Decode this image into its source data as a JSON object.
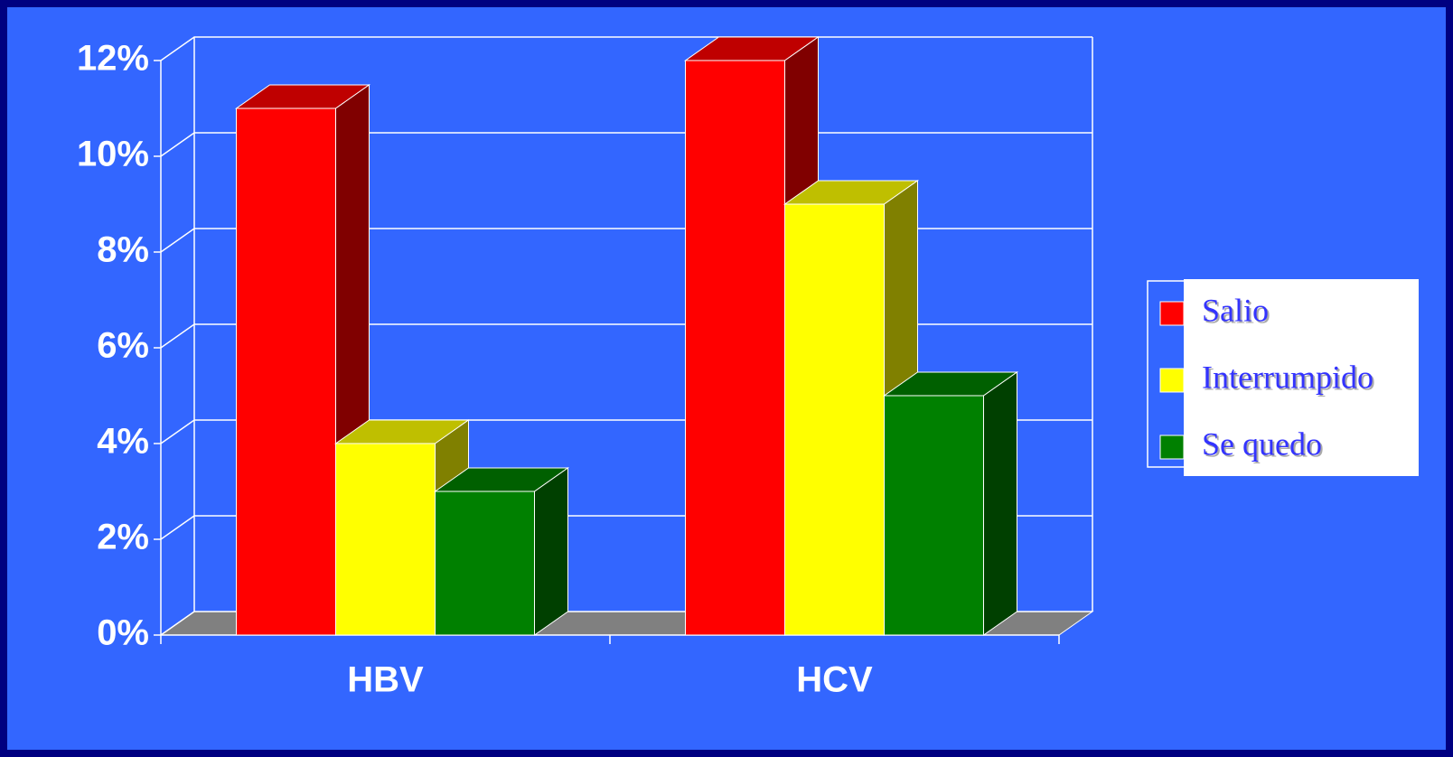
{
  "chart_data": {
    "type": "bar3d",
    "categories": [
      "HBV",
      "HCV"
    ],
    "series": [
      {
        "name": "Salio",
        "color": "#ff0000",
        "values": [
          11,
          12
        ]
      },
      {
        "name": "Interrumpido",
        "color": "#ffff00",
        "values": [
          4,
          9
        ]
      },
      {
        "name": "Se quedo",
        "color": "#008000",
        "values": [
          3,
          5
        ]
      }
    ],
    "ylim": [
      0,
      12
    ],
    "yticks": [
      {
        "value": 0,
        "label": "0%"
      },
      {
        "value": 2,
        "label": "2%"
      },
      {
        "value": 4,
        "label": "4%"
      },
      {
        "value": 6,
        "label": "6%"
      },
      {
        "value": 8,
        "label": "8%"
      },
      {
        "value": 10,
        "label": "10%"
      },
      {
        "value": 12,
        "label": "12%"
      }
    ],
    "grid": true,
    "legend": "right"
  }
}
